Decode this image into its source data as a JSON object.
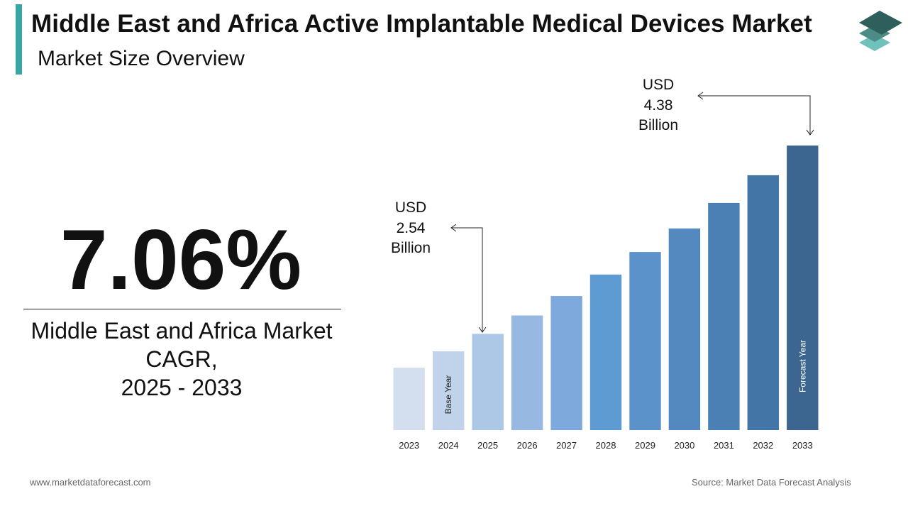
{
  "header": {
    "title": "Middle East and Africa Active Implantable Medical Devices Market",
    "subtitle": "Market Size Overview"
  },
  "logo": {
    "icon": "stacked-layers-logo-icon",
    "colors": [
      "#2f5f5c",
      "#4d8b86",
      "#6fc2bb"
    ]
  },
  "cagr": {
    "value": "7.06%",
    "label_line1": "Middle East and Africa Market",
    "label_line2": "CAGR,",
    "label_line3": "2025 - 2033"
  },
  "callouts": {
    "start": {
      "line1": "USD",
      "line2": "2.54",
      "line3": "Billion"
    },
    "end": {
      "line1": "USD",
      "line2": "4.38",
      "line3": "Billion"
    }
  },
  "chart_data": {
    "type": "bar",
    "categories": [
      "2023",
      "2024",
      "2025",
      "2026",
      "2027",
      "2028",
      "2029",
      "2030",
      "2031",
      "2032",
      "2033"
    ],
    "values": [
      2.21,
      2.37,
      2.54,
      2.72,
      2.91,
      3.12,
      3.34,
      3.57,
      3.82,
      4.09,
      4.38
    ],
    "bar_labels": {
      "2024": "Base Year",
      "2033": "Forecast Year"
    },
    "colors": [
      "#d3dfee",
      "#c1d3ea",
      "#adc7e6",
      "#97b8e1",
      "#7ea9dc",
      "#5f9bd3",
      "#5a92c9",
      "#5389bf",
      "#4b80b4",
      "#4475a7",
      "#3c6690"
    ],
    "ylim": [
      1.6,
      4.45
    ],
    "grid": false,
    "legend": "none"
  },
  "footer": {
    "website": "www.marketdataforecast.com",
    "source": "Source: Market Data Forecast Analysis"
  }
}
